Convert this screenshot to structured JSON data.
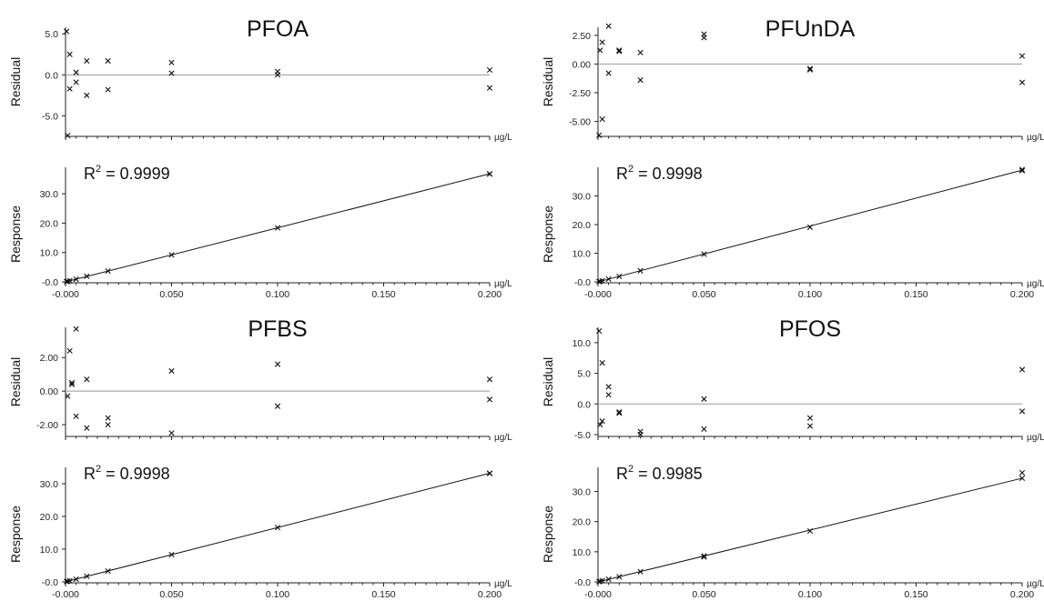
{
  "chart_data": [
    {
      "type": "scatter",
      "compound": "PFOA",
      "r2": "0.9999",
      "x_unit": "µg/L",
      "residual": {
        "ylabel": "Residual",
        "ylim": [
          -7.5,
          5.8
        ],
        "ytick_labels": [
          "5.0",
          "0.0",
          "-5.0"
        ],
        "ytick_values": [
          5,
          0,
          -5
        ],
        "points": [
          [
            0.0005,
            5.3
          ],
          [
            0.001,
            -7.4
          ],
          [
            0.002,
            2.5
          ],
          [
            0.002,
            -1.7
          ],
          [
            0.005,
            0.3
          ],
          [
            0.005,
            -0.9
          ],
          [
            0.01,
            1.7
          ],
          [
            0.01,
            -2.5
          ],
          [
            0.02,
            1.7
          ],
          [
            0.02,
            -1.8
          ],
          [
            0.05,
            1.5
          ],
          [
            0.05,
            0.2
          ],
          [
            0.1,
            0.4
          ],
          [
            0.1,
            0.0
          ],
          [
            0.2,
            0.6
          ],
          [
            0.2,
            -1.6
          ]
        ]
      },
      "response": {
        "ylabel": "Response",
        "ylim": [
          -0.3,
          39
        ],
        "ytick_labels": [
          "30.0",
          "20.0",
          "10.0",
          "-0.0"
        ],
        "ytick_values": [
          30,
          20,
          10,
          0
        ],
        "fit_line": [
          [
            0.0,
            0.0
          ],
          [
            0.2,
            36.8
          ]
        ],
        "points": [
          [
            0.0005,
            0.1
          ],
          [
            0.001,
            0.2
          ],
          [
            0.002,
            0.4
          ],
          [
            0.005,
            0.9
          ],
          [
            0.01,
            1.9
          ],
          [
            0.02,
            3.7
          ],
          [
            0.05,
            9.2
          ],
          [
            0.1,
            18.4
          ],
          [
            0.2,
            36.8
          ],
          [
            0.2,
            36.7
          ]
        ]
      },
      "x_ticks": [
        "-0.000",
        "0.050",
        "0.100",
        "0.150",
        "0.200"
      ],
      "x_tick_values": [
        0,
        0.05,
        0.1,
        0.15,
        0.2
      ]
    },
    {
      "type": "scatter",
      "compound": "PFUnDA",
      "r2": "0.9998",
      "x_unit": "µg/L",
      "residual": {
        "ylabel": "Residual",
        "ylim": [
          -6.3,
          3.2
        ],
        "ytick_labels": [
          "2.50",
          "0.00",
          "-2.50",
          "-5.00"
        ],
        "ytick_values": [
          2.5,
          0,
          -2.5,
          -5
        ],
        "points": [
          [
            0.0005,
            -6.2
          ],
          [
            0.001,
            1.2
          ],
          [
            0.002,
            1.9
          ],
          [
            0.002,
            -4.8
          ],
          [
            0.005,
            3.3
          ],
          [
            0.005,
            -0.8
          ],
          [
            0.01,
            1.2
          ],
          [
            0.01,
            1.1
          ],
          [
            0.02,
            1.0
          ],
          [
            0.02,
            -1.4
          ],
          [
            0.05,
            2.6
          ],
          [
            0.05,
            2.3
          ],
          [
            0.1,
            -0.4
          ],
          [
            0.1,
            -0.5
          ],
          [
            0.2,
            0.7
          ],
          [
            0.2,
            -1.6
          ]
        ]
      },
      "response": {
        "ylabel": "Response",
        "ylim": [
          -0.3,
          40
        ],
        "ytick_labels": [
          "30.0",
          "20.0",
          "10.0",
          "-0.0"
        ],
        "ytick_values": [
          30,
          20,
          10,
          0
        ],
        "fit_line": [
          [
            0.0,
            0.0
          ],
          [
            0.2,
            39.0
          ]
        ],
        "points": [
          [
            0.0005,
            0.1
          ],
          [
            0.001,
            0.2
          ],
          [
            0.002,
            0.4
          ],
          [
            0.005,
            1.0
          ],
          [
            0.01,
            1.9
          ],
          [
            0.02,
            3.9
          ],
          [
            0.05,
            9.7
          ],
          [
            0.1,
            19.1
          ],
          [
            0.2,
            39.2
          ],
          [
            0.2,
            38.8
          ]
        ]
      },
      "x_ticks": [
        "-0.000",
        "0.050",
        "0.100",
        "0.150",
        "0.200"
      ],
      "x_tick_values": [
        0,
        0.05,
        0.1,
        0.15,
        0.2
      ]
    },
    {
      "type": "scatter",
      "compound": "PFBS",
      "r2": "0.9998",
      "x_unit": "µg/L",
      "residual": {
        "ylabel": "Residual",
        "ylim": [
          -2.7,
          3.8
        ],
        "ytick_labels": [
          "2.00",
          "0.00",
          "-2.00"
        ],
        "ytick_values": [
          2,
          0,
          -2
        ],
        "points": [
          [
            0.001,
            -0.3
          ],
          [
            0.002,
            2.4
          ],
          [
            0.003,
            0.5
          ],
          [
            0.003,
            0.4
          ],
          [
            0.005,
            3.7
          ],
          [
            0.005,
            -1.5
          ],
          [
            0.01,
            0.7
          ],
          [
            0.01,
            -2.2
          ],
          [
            0.02,
            -1.6
          ],
          [
            0.02,
            -2.0
          ],
          [
            0.05,
            1.2
          ],
          [
            0.05,
            -2.5
          ],
          [
            0.1,
            1.6
          ],
          [
            0.1,
            -0.9
          ],
          [
            0.2,
            0.7
          ],
          [
            0.2,
            -0.5
          ]
        ]
      },
      "response": {
        "ylabel": "Response",
        "ylim": [
          -0.3,
          35
        ],
        "ytick_labels": [
          "30.0",
          "20.0",
          "10.0",
          "-0.0"
        ],
        "ytick_values": [
          30,
          20,
          10,
          0
        ],
        "fit_line": [
          [
            0.0,
            0.0
          ],
          [
            0.2,
            33.2
          ]
        ],
        "points": [
          [
            0.0005,
            0.1
          ],
          [
            0.001,
            0.2
          ],
          [
            0.002,
            0.3
          ],
          [
            0.005,
            0.8
          ],
          [
            0.01,
            1.7
          ],
          [
            0.02,
            3.3
          ],
          [
            0.05,
            8.3
          ],
          [
            0.1,
            16.6
          ],
          [
            0.2,
            33.2
          ],
          [
            0.2,
            33.1
          ]
        ]
      },
      "x_ticks": [
        "-0.000",
        "0.050",
        "0.100",
        "0.150",
        "0.200"
      ],
      "x_tick_values": [
        0,
        0.05,
        0.1,
        0.15,
        0.2
      ]
    },
    {
      "type": "scatter",
      "compound": "PFOS",
      "r2": "0.9985",
      "x_unit": "µg/L",
      "residual": {
        "ylabel": "Residual",
        "ylim": [
          -5.3,
          12.5
        ],
        "ytick_labels": [
          "10.0",
          "5.0",
          "0.0",
          "-5.0"
        ],
        "ytick_values": [
          10,
          5,
          0,
          -5
        ],
        "points": [
          [
            0.0005,
            11.9
          ],
          [
            0.001,
            -3.4
          ],
          [
            0.002,
            6.7
          ],
          [
            0.002,
            -2.8
          ],
          [
            0.005,
            2.8
          ],
          [
            0.005,
            1.5
          ],
          [
            0.01,
            -1.3
          ],
          [
            0.01,
            -1.5
          ],
          [
            0.02,
            -4.5
          ],
          [
            0.02,
            -5.0
          ],
          [
            0.05,
            0.8
          ],
          [
            0.05,
            -4.1
          ],
          [
            0.1,
            -2.3
          ],
          [
            0.1,
            -3.6
          ],
          [
            0.2,
            5.6
          ],
          [
            0.2,
            -1.2
          ]
        ]
      },
      "response": {
        "ylabel": "Response",
        "ylim": [
          -0.3,
          38
        ],
        "ytick_labels": [
          "30.0",
          "20.0",
          "10.0",
          "-0.0"
        ],
        "ytick_values": [
          30,
          20,
          10,
          0
        ],
        "fit_line": [
          [
            0.0,
            0.0
          ],
          [
            0.2,
            34.4
          ]
        ],
        "points": [
          [
            0.0005,
            0.1
          ],
          [
            0.001,
            0.2
          ],
          [
            0.002,
            0.4
          ],
          [
            0.005,
            0.9
          ],
          [
            0.01,
            1.7
          ],
          [
            0.02,
            3.4
          ],
          [
            0.05,
            8.6
          ],
          [
            0.05,
            8.3
          ],
          [
            0.1,
            16.9
          ],
          [
            0.2,
            36.2
          ],
          [
            0.2,
            34.4
          ]
        ]
      },
      "x_ticks": [
        "-0.000",
        "0.050",
        "0.100",
        "0.150",
        "0.200"
      ],
      "x_tick_values": [
        0,
        0.05,
        0.1,
        0.15,
        0.2
      ]
    }
  ]
}
